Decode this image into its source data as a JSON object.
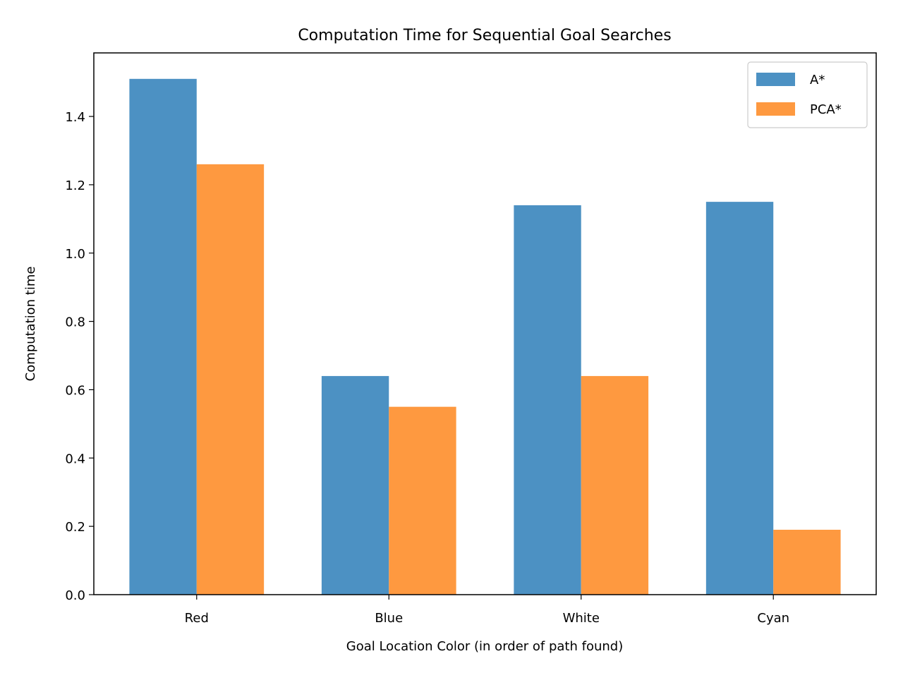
{
  "chart_data": {
    "type": "bar",
    "title": "Computation Time for Sequential Goal Searches",
    "xlabel": "Goal Location Color (in order of path found)",
    "ylabel": "Computation time",
    "categories": [
      "Red",
      "Blue",
      "White",
      "Cyan"
    ],
    "series": [
      {
        "name": "A*",
        "values": [
          1.51,
          0.64,
          1.14,
          1.15
        ],
        "color": "#4c91c3"
      },
      {
        "name": "PCA*",
        "values": [
          1.26,
          0.55,
          0.64,
          0.19
        ],
        "color": "#fe9940"
      }
    ],
    "ylim": [
      0,
      1.586
    ],
    "yticks": [
      "0.0",
      "0.2",
      "0.4",
      "0.6",
      "0.8",
      "1.0",
      "1.2",
      "1.4"
    ],
    "legend": {
      "placement": "top-right"
    },
    "grid": false
  }
}
